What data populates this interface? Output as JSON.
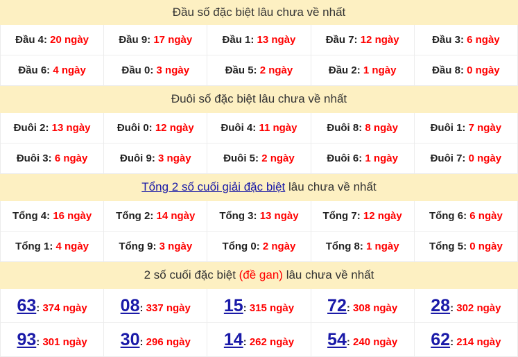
{
  "sections": [
    {
      "title": "Đầu số đặc biệt lâu chưa về nhất",
      "rows": [
        [
          {
            "label": "Đầu 4:",
            "value": "20 ngày"
          },
          {
            "label": "Đầu 9:",
            "value": "17 ngày"
          },
          {
            "label": "Đầu 1:",
            "value": "13 ngày"
          },
          {
            "label": "Đầu 7:",
            "value": "12 ngày"
          },
          {
            "label": "Đầu 3:",
            "value": "6 ngày"
          }
        ],
        [
          {
            "label": "Đầu 6:",
            "value": "4 ngày"
          },
          {
            "label": "Đầu 0:",
            "value": "3 ngày"
          },
          {
            "label": "Đầu 5:",
            "value": "2 ngày"
          },
          {
            "label": "Đầu 2:",
            "value": "1 ngày"
          },
          {
            "label": "Đầu 8:",
            "value": "0 ngày"
          }
        ]
      ]
    },
    {
      "title": "Đuôi số đặc biệt lâu chưa về nhất",
      "rows": [
        [
          {
            "label": "Đuôi 2:",
            "value": "13 ngày"
          },
          {
            "label": "Đuôi 0:",
            "value": "12 ngày"
          },
          {
            "label": "Đuôi 4:",
            "value": "11 ngày"
          },
          {
            "label": "Đuôi 8:",
            "value": "8 ngày"
          },
          {
            "label": "Đuôi 1:",
            "value": "7 ngày"
          }
        ],
        [
          {
            "label": "Đuôi 3:",
            "value": "6 ngày"
          },
          {
            "label": "Đuôi 9:",
            "value": "3 ngày"
          },
          {
            "label": "Đuôi 5:",
            "value": "2 ngày"
          },
          {
            "label": "Đuôi 6:",
            "value": "1 ngày"
          },
          {
            "label": "Đuôi 7:",
            "value": "0 ngày"
          }
        ]
      ]
    },
    {
      "title_link": "Tổng 2 số cuối giải đặc biệt",
      "title_rest": " lâu chưa về nhất",
      "rows": [
        [
          {
            "label": "Tổng 4:",
            "value": "16 ngày"
          },
          {
            "label": "Tổng 2:",
            "value": "14 ngày"
          },
          {
            "label": "Tổng 3:",
            "value": "13 ngày"
          },
          {
            "label": "Tổng 7:",
            "value": "12 ngày"
          },
          {
            "label": "Tổng 6:",
            "value": "6 ngày"
          }
        ],
        [
          {
            "label": "Tổng 1:",
            "value": "4 ngày"
          },
          {
            "label": "Tổng 9:",
            "value": "3 ngày"
          },
          {
            "label": "Tổng 0:",
            "value": "2 ngày"
          },
          {
            "label": "Tổng 8:",
            "value": "1 ngày"
          },
          {
            "label": "Tổng 5:",
            "value": "0 ngày"
          }
        ]
      ]
    },
    {
      "title_a": "2 số cuối đặc biệt ",
      "title_red": "(đề gan)",
      "title_b": " lâu chưa về nhất",
      "rows": [
        [
          {
            "num": "63",
            "value": "374 ngày"
          },
          {
            "num": "08",
            "value": "337 ngày"
          },
          {
            "num": "15",
            "value": "315 ngày"
          },
          {
            "num": "72",
            "value": "308 ngày"
          },
          {
            "num": "28",
            "value": "302 ngày"
          }
        ],
        [
          {
            "num": "93",
            "value": "301 ngày"
          },
          {
            "num": "30",
            "value": "296 ngày"
          },
          {
            "num": "14",
            "value": "262 ngày"
          },
          {
            "num": "54",
            "value": "240 ngày"
          },
          {
            "num": "62",
            "value": "214 ngày"
          }
        ]
      ]
    }
  ],
  "colors": {
    "header_bg": "#fdf0c2",
    "value": "#ff0000",
    "number": "#1a1aa8"
  }
}
